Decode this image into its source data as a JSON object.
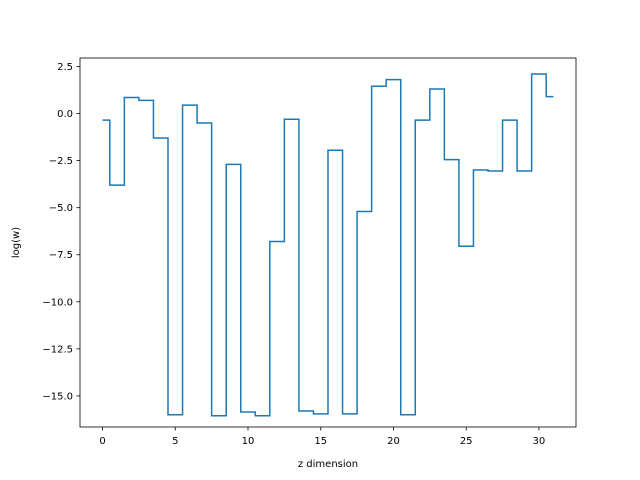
{
  "chart_data": {
    "type": "line",
    "drawstyle": "steps-mid",
    "xlabel": "z dimension",
    "ylabel": "log(w)",
    "xlim": [
      -1.55,
      32.55
    ],
    "ylim": [
      -16.65,
      2.95
    ],
    "xticks": [
      0,
      5,
      10,
      15,
      20,
      25,
      30
    ],
    "xtick_labels": [
      "0",
      "5",
      "10",
      "15",
      "20",
      "25",
      "30"
    ],
    "yticks": [
      2.5,
      0.0,
      -2.5,
      -5.0,
      -7.5,
      -10.0,
      -12.5,
      -15.0
    ],
    "ytick_labels": [
      "2.5",
      "0.0",
      "−2.5",
      "−5.0",
      "−7.5",
      "−10.0",
      "−12.5",
      "−15.0"
    ],
    "grid": false,
    "series": [
      {
        "color": "#1f77b4",
        "x": [
          0,
          1,
          2,
          3,
          4,
          5,
          6,
          7,
          8,
          9,
          10,
          11,
          12,
          13,
          14,
          15,
          16,
          17,
          18,
          19,
          20,
          21,
          22,
          23,
          24,
          25,
          26,
          27,
          28,
          29,
          30,
          31
        ],
        "y": [
          -0.35,
          -3.8,
          0.85,
          0.7,
          -1.3,
          -16.0,
          0.45,
          -0.5,
          -16.05,
          -2.7,
          -15.85,
          -16.05,
          -6.8,
          -0.3,
          -15.8,
          -15.95,
          -1.95,
          -15.95,
          -5.2,
          1.45,
          1.8,
          -16.0,
          -0.35,
          1.3,
          -2.45,
          -7.05,
          -3.0,
          -3.05,
          -0.35,
          -3.05,
          2.1,
          0.9
        ]
      }
    ]
  }
}
